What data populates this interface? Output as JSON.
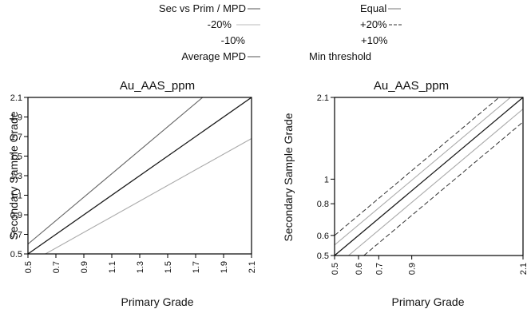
{
  "legend": [
    {
      "label": "Sec vs Prim / MPD",
      "style": "solid-dark"
    },
    {
      "label": "Equal",
      "style": "solid-gray"
    },
    {
      "label": "-20%",
      "style": "solid-light"
    },
    {
      "label": "+20%",
      "style": "dashed"
    },
    {
      "label": "-10%",
      "style": "none"
    },
    {
      "label": "+10%",
      "style": "none"
    },
    {
      "label": "Average MPD",
      "style": "solid-dark"
    },
    {
      "label": "Min threshold",
      "style": "none"
    }
  ],
  "colors": {
    "dark": "#1a1a1a",
    "gray": "#666666",
    "light": "#aaaaaa",
    "axis": "#000000"
  },
  "chart_data": [
    {
      "type": "line",
      "title": "Au_AAS_ppm",
      "xlabel": "Primary Grade",
      "ylabel": "Secondary Sample Grade",
      "scale": "linear",
      "xlim": [
        0.5,
        2.1
      ],
      "ylim": [
        0.5,
        2.1
      ],
      "xticks": [
        "0.5",
        "0.7",
        "0.9",
        "1.1",
        "1.3",
        "1.5",
        "1.7",
        "1.9",
        "2.1"
      ],
      "yticks": [
        "0.5",
        "0.7",
        "0.9",
        "1.1",
        "1.3",
        "1.5",
        "1.7",
        "1.9",
        "2.1"
      ],
      "series": [
        {
          "name": "Equal",
          "points": [
            [
              0.5,
              0.5
            ],
            [
              2.1,
              2.1
            ]
          ],
          "style": "solid-dark"
        },
        {
          "name": "+20%",
          "points": [
            [
              0.5,
              0.6
            ],
            [
              1.75,
              2.1
            ]
          ],
          "style": "solid-gray"
        },
        {
          "name": "-20%",
          "points": [
            [
              0.5,
              0.4
            ],
            [
              2.1,
              1.68
            ]
          ],
          "style": "solid-light"
        }
      ]
    },
    {
      "type": "line",
      "title": "Au_AAS_ppm",
      "xlabel": "Primary Grade",
      "ylabel": "Secondary Sample Grade",
      "scale": "log",
      "xlim": [
        0.5,
        2.1
      ],
      "ylim": [
        0.5,
        2.1
      ],
      "xticks": [
        "0.5",
        "0.6",
        "0.7",
        "0.9",
        "2.1"
      ],
      "yticks": [
        "0.5",
        "0.6",
        "0.8",
        "1",
        "2.1"
      ],
      "series": [
        {
          "name": "Equal",
          "points": [
            [
              0.5,
              0.5
            ],
            [
              2.1,
              2.1
            ]
          ],
          "style": "solid-dark"
        },
        {
          "name": "+20%",
          "points": [
            [
              0.5,
              0.6
            ],
            [
              1.75,
              2.1
            ]
          ],
          "style": "dashed"
        },
        {
          "name": "-20%",
          "points": [
            [
              0.625,
              0.5
            ],
            [
              2.1,
              1.68
            ]
          ],
          "style": "dashed"
        },
        {
          "name": "+10%",
          "points": [
            [
              0.5,
              0.55
            ],
            [
              1.909,
              2.1
            ]
          ],
          "style": "solid-light"
        },
        {
          "name": "-10%",
          "points": [
            [
              0.556,
              0.5
            ],
            [
              2.1,
              1.89
            ]
          ],
          "style": "solid-light"
        }
      ]
    }
  ]
}
